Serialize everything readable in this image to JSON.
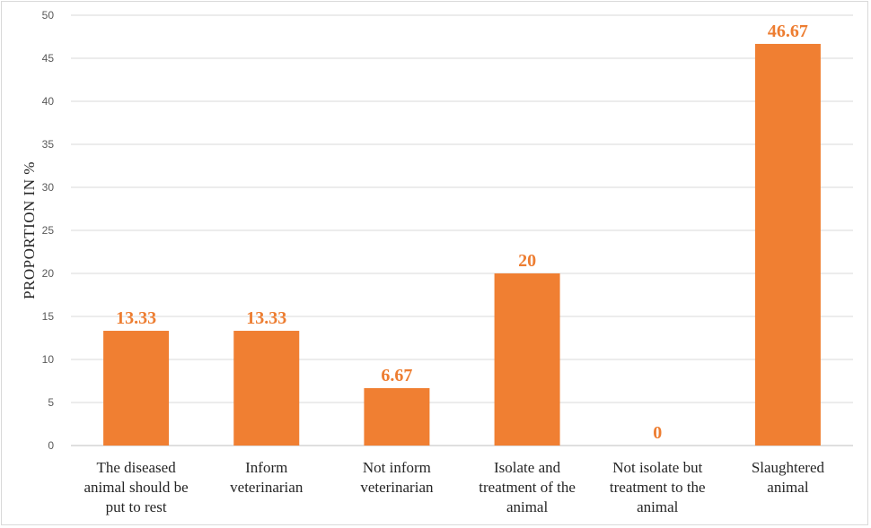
{
  "chart_data": {
    "type": "bar",
    "categories": [
      [
        "The diseased",
        "animal should be",
        "put to rest"
      ],
      [
        "Inform",
        "veterinarian"
      ],
      [
        "Not inform",
        "veterinarian"
      ],
      [
        "Isolate and",
        "treatment of the",
        "animal"
      ],
      [
        "Not isolate but",
        "treatment to the",
        "animal"
      ],
      [
        "Slaughtered",
        "animal"
      ]
    ],
    "values": [
      13.33,
      13.33,
      6.67,
      20,
      0,
      46.67
    ],
    "data_labels": [
      "13.33",
      "13.33",
      "6.67",
      "20",
      "0",
      "46.67"
    ],
    "title": "",
    "xlabel": "",
    "ylabel": "PROPORTION  IN %",
    "ylim": [
      0,
      50
    ],
    "yticks": [
      0,
      5,
      10,
      15,
      20,
      25,
      30,
      35,
      40,
      45,
      50
    ],
    "grid": true,
    "bar_color": "#f07f32",
    "label_color": "#ed7d31",
    "grid_color": "#d9d9d9"
  }
}
